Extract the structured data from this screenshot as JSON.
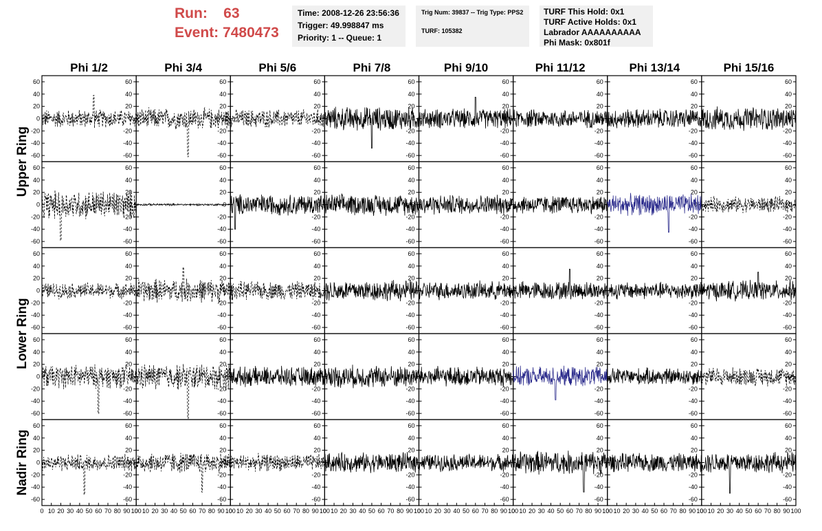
{
  "header": {
    "run_label": "Run:",
    "run_value": "63",
    "event_label": "Event:",
    "event_value": "7480473"
  },
  "info_box_1": {
    "time": "Time: 2008-12-26 23:56:36",
    "trigger": "Trigger: 49.998847 ms",
    "priority": "Priority: 1 -- Queue: 1"
  },
  "info_box_2": {
    "trig": "Trig Num: 39837 -- Trig Type: PPS2",
    "turf": "TURF: 105382"
  },
  "info_box_3": {
    "hold": "TURF This Hold: 0x1",
    "active": "TURF Active Holds: 0x1",
    "labrador": "Labrador AAAAAAAAAA",
    "mask": "Phi Mask: 0x801f"
  },
  "colors": {
    "run_text": "#d04a4a",
    "info_bg": "#f0f0f0",
    "trace_default": "#000000",
    "trace_highlight": "#2b2b8c"
  },
  "chart_data": {
    "type": "line",
    "columns": [
      "Phi 1/2",
      "Phi 3/4",
      "Phi 5/6",
      "Phi 7/8",
      "Phi 9/10",
      "Phi 11/12",
      "Phi 13/14",
      "Phi 15/16"
    ],
    "rows": [
      "Upper Ring",
      "Upper Ring",
      "Lower Ring",
      "Lower Ring",
      "Nadir Ring"
    ],
    "row_group_labels": [
      {
        "label": "Upper Ring",
        "rows": [
          0,
          1
        ]
      },
      {
        "label": "Lower Ring",
        "rows": [
          2,
          3
        ]
      },
      {
        "label": "Nadir Ring",
        "rows": [
          4
        ]
      }
    ],
    "xlim": [
      0,
      100
    ],
    "ylim": [
      -70,
      70
    ],
    "x_tick_labels": [
      "0",
      "10",
      "20",
      "30",
      "40",
      "50",
      "60",
      "70",
      "80",
      "90",
      "100"
    ],
    "y_tick_labels": [
      "-60",
      "-40",
      "-20",
      "0",
      "20",
      "40",
      "60"
    ],
    "grid": false,
    "panels": [
      [
        {
          "style": "dashed",
          "amp": 14,
          "spikes": [
            [
              55,
              38
            ]
          ]
        },
        {
          "style": "dashed",
          "amp": 16,
          "spikes": [
            [
              55,
              -62
            ]
          ]
        },
        {
          "style": "dashed",
          "amp": 14,
          "spikes": []
        },
        {
          "style": "solid",
          "amp": 18,
          "spikes": [
            [
              50,
              -48
            ]
          ]
        },
        {
          "style": "solid",
          "amp": 15,
          "spikes": [
            [
              60,
              35
            ]
          ]
        },
        {
          "style": "solid",
          "amp": 14,
          "spikes": []
        },
        {
          "style": "solid",
          "amp": 15,
          "spikes": []
        },
        {
          "style": "solid",
          "amp": 18,
          "spikes": []
        }
      ],
      [
        {
          "style": "dashed",
          "amp": 22,
          "spikes": [
            [
              20,
              -58
            ]
          ]
        },
        {
          "style": "flat",
          "amp": 1.5,
          "spikes": []
        },
        {
          "style": "solid",
          "amp": 16,
          "spikes": [
            [
              5,
              -40
            ]
          ]
        },
        {
          "style": "solid",
          "amp": 16,
          "spikes": []
        },
        {
          "style": "solid",
          "amp": 15,
          "spikes": []
        },
        {
          "style": "solid",
          "amp": 14,
          "spikes": []
        },
        {
          "style": "blue",
          "amp": 16,
          "spikes": [
            [
              65,
              -45
            ]
          ]
        },
        {
          "style": "dashed",
          "amp": 12,
          "spikes": []
        }
      ],
      [
        {
          "style": "dashed",
          "amp": 12,
          "spikes": []
        },
        {
          "style": "dashed",
          "amp": 18,
          "spikes": [
            [
              50,
              38
            ]
          ]
        },
        {
          "style": "dashed",
          "amp": 14,
          "spikes": []
        },
        {
          "style": "solid",
          "amp": 16,
          "spikes": []
        },
        {
          "style": "solid",
          "amp": 14,
          "spikes": []
        },
        {
          "style": "solid",
          "amp": 14,
          "spikes": [
            [
              60,
              35
            ]
          ]
        },
        {
          "style": "solid",
          "amp": 13,
          "spikes": []
        },
        {
          "style": "solid",
          "amp": 15,
          "spikes": [
            [
              60,
              30
            ]
          ]
        }
      ],
      [
        {
          "style": "dashed",
          "amp": 18,
          "spikes": [
            [
              60,
              -60
            ]
          ]
        },
        {
          "style": "dashed",
          "amp": 20,
          "spikes": [
            [
              55,
              -68
            ]
          ]
        },
        {
          "style": "solid",
          "amp": 15,
          "spikes": []
        },
        {
          "style": "solid",
          "amp": 17,
          "spikes": []
        },
        {
          "style": "solid",
          "amp": 15,
          "spikes": []
        },
        {
          "style": "blue",
          "amp": 15,
          "spikes": [
            [
              45,
              -38
            ]
          ]
        },
        {
          "style": "solid",
          "amp": 13,
          "spikes": []
        },
        {
          "style": "dashed",
          "amp": 14,
          "spikes": []
        }
      ],
      [
        {
          "style": "dashed",
          "amp": 13,
          "spikes": [
            [
              45,
              -52
            ]
          ]
        },
        {
          "style": "dashed",
          "amp": 16,
          "spikes": [
            [
              70,
              -48
            ]
          ]
        },
        {
          "style": "dashed",
          "amp": 13,
          "spikes": []
        },
        {
          "style": "solid",
          "amp": 15,
          "spikes": []
        },
        {
          "style": "solid",
          "amp": 13,
          "spikes": []
        },
        {
          "style": "solid",
          "amp": 18,
          "spikes": [
            [
              75,
              -48
            ]
          ]
        },
        {
          "style": "solid",
          "amp": 14,
          "spikes": []
        },
        {
          "style": "solid",
          "amp": 16,
          "spikes": [
            [
              30,
              -50
            ]
          ]
        }
      ]
    ]
  }
}
